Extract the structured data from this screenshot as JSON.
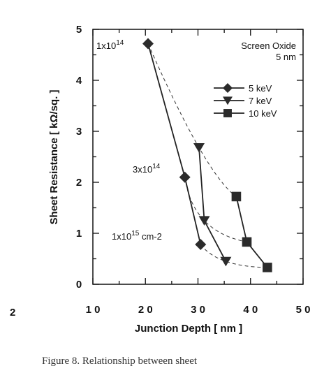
{
  "chart_data": {
    "type": "line",
    "xlabel": "Junction Depth   [ nm ]",
    "ylabel": "Sheet Resistance   [ kΩ/sq. ]",
    "xlim": [
      10,
      50
    ],
    "ylim": [
      0,
      5
    ],
    "x_ticks": [
      "1 0",
      "2 0",
      "3 0",
      "4 0",
      "5 0"
    ],
    "y_ticks": [
      "0",
      "1",
      "2",
      "3",
      "4",
      "5"
    ],
    "box_label": {
      "line1": "Screen Oxide",
      "line2": "5 nm"
    },
    "series": [
      {
        "name": "5 keV",
        "marker": "diamond",
        "style": "solid",
        "points": [
          [
            20.5,
            4.72
          ],
          [
            27.5,
            2.1
          ],
          [
            30.5,
            0.78
          ]
        ]
      },
      {
        "name": "7 keV",
        "marker": "triangle-down",
        "style": "solid",
        "points": [
          [
            30.2,
            2.68
          ],
          [
            31.2,
            1.25
          ],
          [
            35.3,
            0.45
          ]
        ]
      },
      {
        "name": "10 keV",
        "marker": "square",
        "style": "solid",
        "points": [
          [
            37.3,
            1.72
          ],
          [
            39.3,
            0.83
          ],
          [
            43.2,
            0.33
          ]
        ]
      }
    ],
    "dose_curves": [
      {
        "style": "dashed",
        "points": [
          [
            20.5,
            4.72
          ],
          [
            30.2,
            2.68
          ],
          [
            37.3,
            1.72
          ]
        ]
      },
      {
        "style": "dashed",
        "points": [
          [
            27.5,
            2.1
          ],
          [
            31.2,
            1.25
          ],
          [
            39.3,
            0.83
          ]
        ]
      },
      {
        "style": "dashed",
        "points": [
          [
            30.5,
            0.78
          ],
          [
            35.3,
            0.45
          ],
          [
            43.2,
            0.33
          ]
        ]
      }
    ],
    "annotations": [
      {
        "id": "dose1",
        "base": "1x10",
        "exp": "14",
        "suffix": ""
      },
      {
        "id": "dose3",
        "base": "3x10",
        "exp": "14",
        "suffix": ""
      },
      {
        "id": "dose15",
        "base": "1x10",
        "exp": "15",
        "suffix": " cm-2"
      }
    ]
  },
  "margin_text": {
    "left_number": "2",
    "caption": "Figure 8.   Relationship between sheet"
  }
}
